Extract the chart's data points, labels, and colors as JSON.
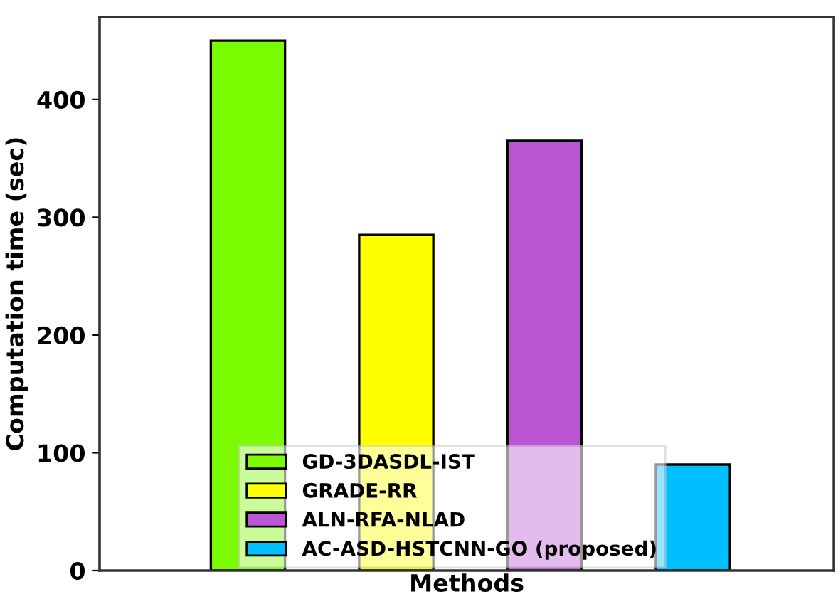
{
  "chart_data": {
    "type": "bar",
    "xlabel": "Methods",
    "ylabel": "Computation time (sec)",
    "categories": [
      null,
      null,
      null,
      null
    ],
    "series": [
      {
        "name": "GD-3DASDL-IST",
        "color": "#7cfc00",
        "values": [
          450,
          null,
          null,
          null
        ]
      },
      {
        "name": "GRADE-RR",
        "color": "#ffff00",
        "values": [
          null,
          285,
          null,
          null
        ]
      },
      {
        "name": "ALN-RFA-NLAD",
        "color": "#ba55d3",
        "values": [
          null,
          null,
          365,
          null
        ]
      },
      {
        "name": "AC-ASD-HSTCNN-GO (proposed)",
        "color": "#00bfff",
        "values": [
          null,
          null,
          null,
          90
        ]
      }
    ],
    "ylim": [
      0,
      470
    ],
    "yticks": [
      0,
      100,
      200,
      300,
      400
    ],
    "grid": false,
    "legend": "bottom"
  }
}
